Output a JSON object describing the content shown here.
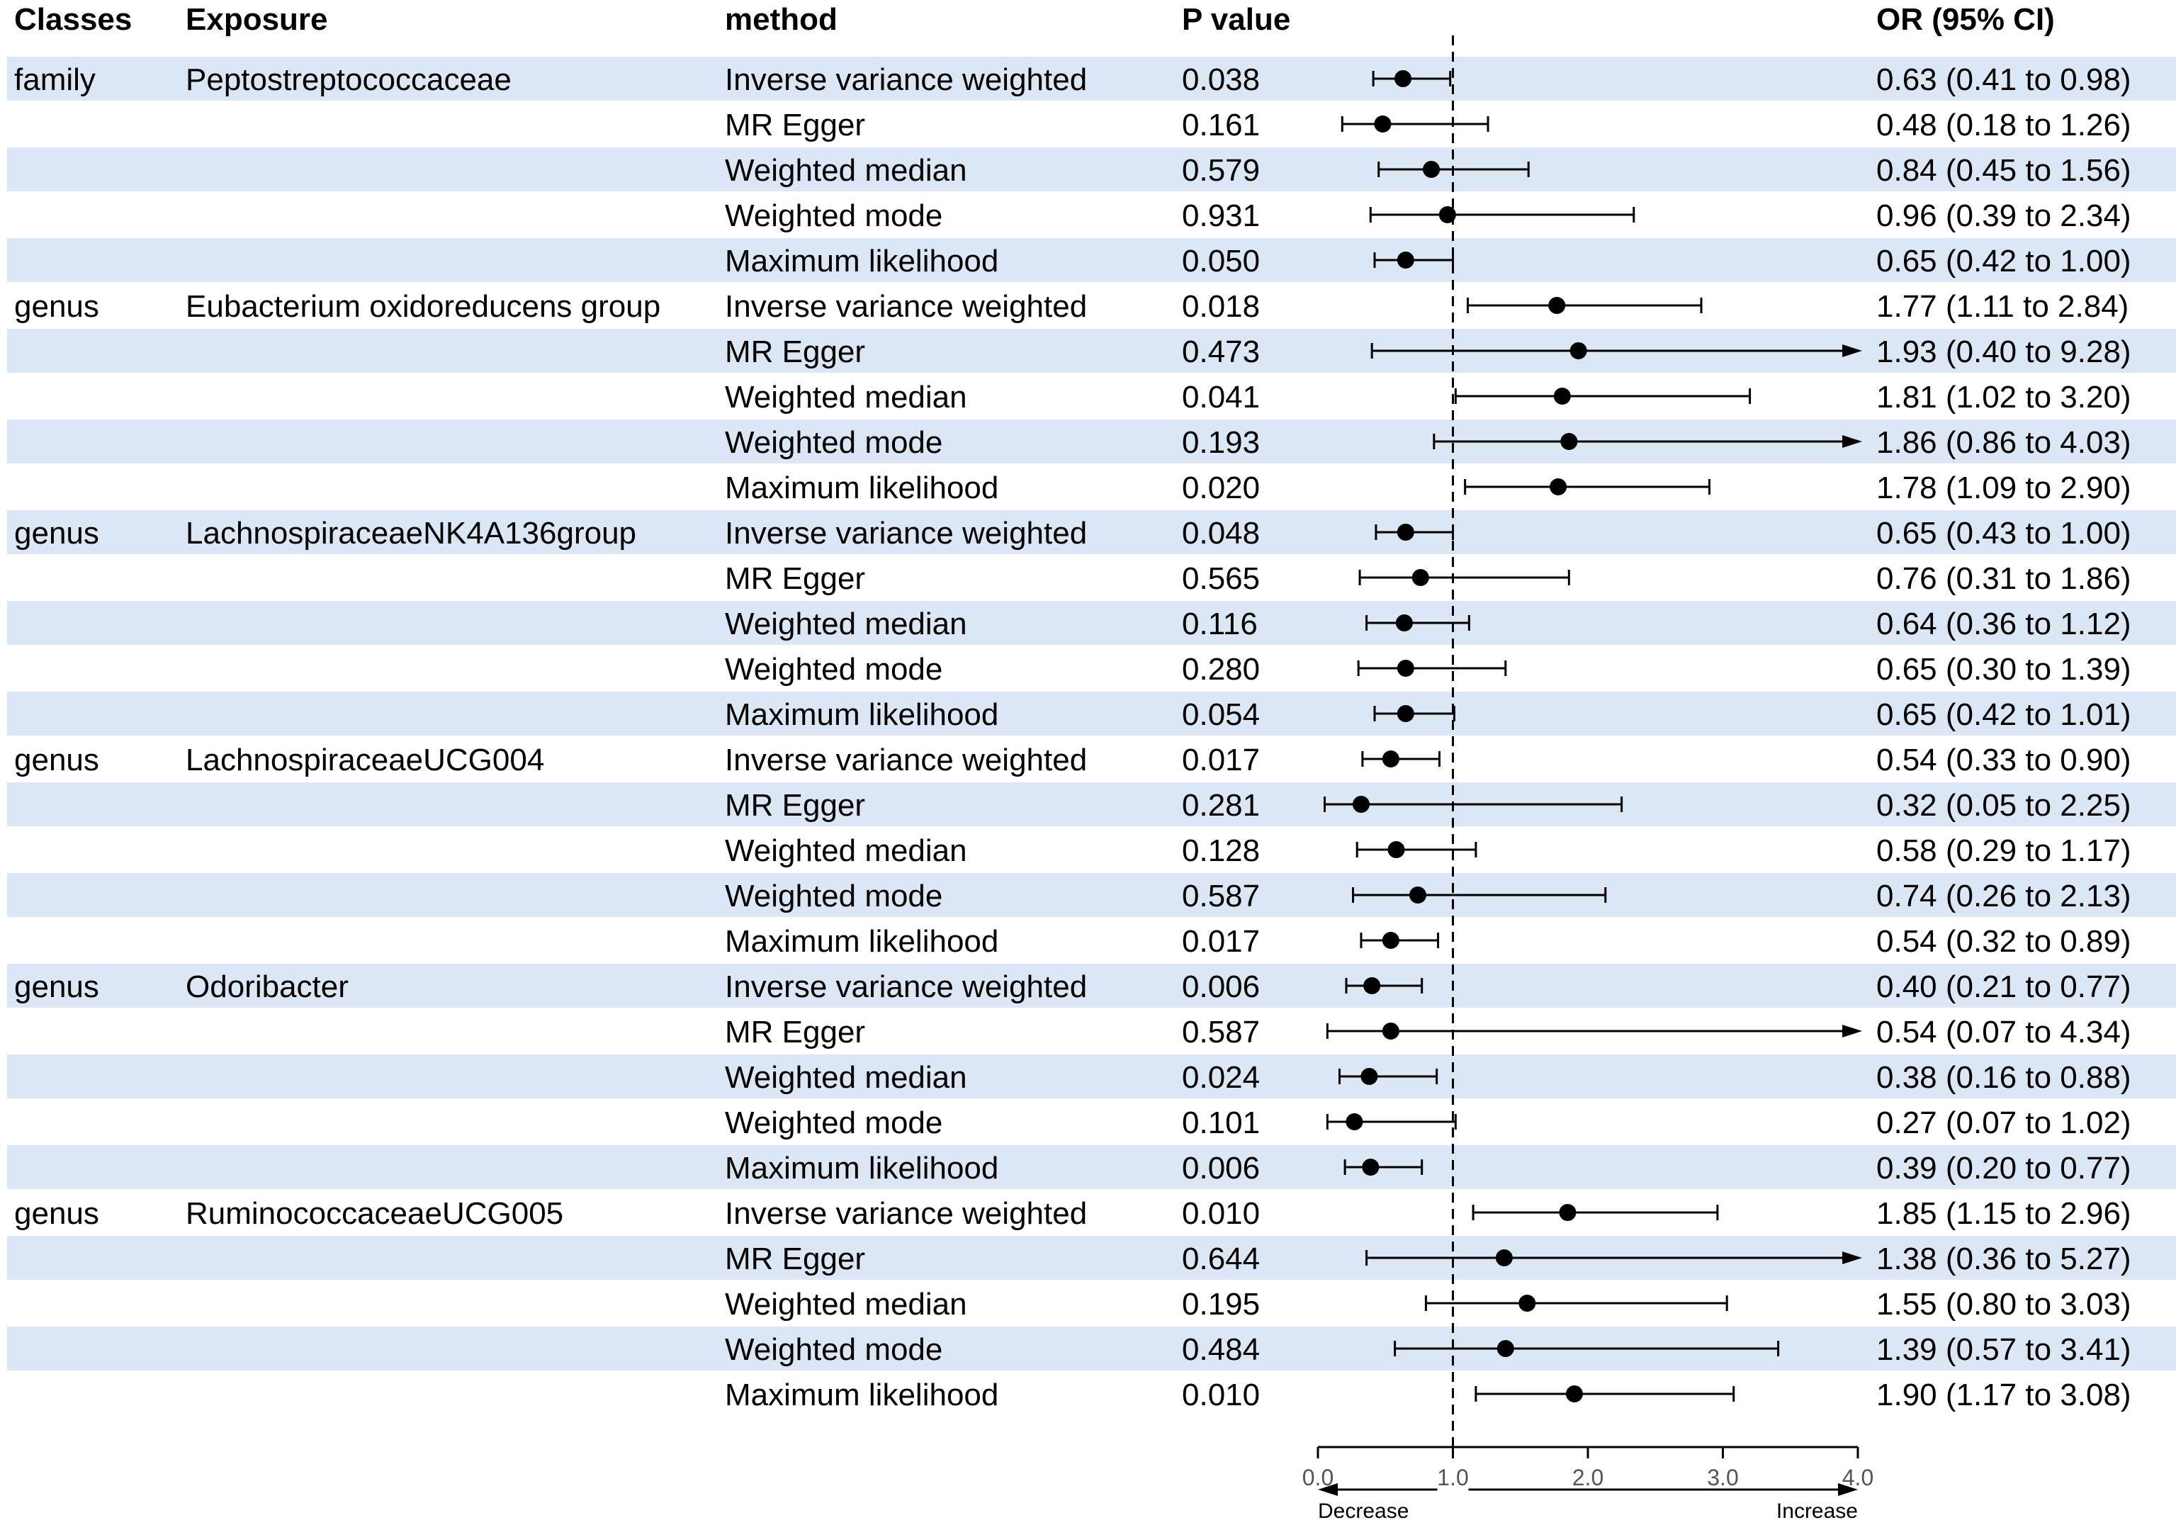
{
  "chart_data": {
    "type": "forest",
    "columns": {
      "classes": "Classes",
      "exposure": "Exposure",
      "method": "method",
      "pvalue": "P value",
      "or": "OR (95% CI)"
    },
    "xaxis": {
      "range": [
        0,
        4
      ],
      "reference": 1,
      "ticks": [
        {
          "value": 0,
          "label": "0.0"
        },
        {
          "value": 1,
          "label": "1.0"
        },
        {
          "value": 2,
          "label": "2.0"
        },
        {
          "value": 3,
          "label": "3.0"
        },
        {
          "value": 4,
          "label": "4.0"
        }
      ],
      "left_label": "Decrease",
      "right_label": "Increase"
    },
    "rows": [
      {
        "classes": "family",
        "exposure": "Peptostreptococcaceae",
        "method": "Inverse variance weighted",
        "p": "0.038",
        "or_text": "0.63 (0.41 to 0.98)",
        "or": 0.63,
        "lo": 0.41,
        "hi": 0.98
      },
      {
        "classes": "",
        "exposure": "",
        "method": "MR Egger",
        "p": "0.161",
        "or_text": "0.48 (0.18 to 1.26)",
        "or": 0.48,
        "lo": 0.18,
        "hi": 1.26
      },
      {
        "classes": "",
        "exposure": "",
        "method": "Weighted median",
        "p": "0.579",
        "or_text": "0.84 (0.45 to 1.56)",
        "or": 0.84,
        "lo": 0.45,
        "hi": 1.56
      },
      {
        "classes": "",
        "exposure": "",
        "method": "Weighted mode",
        "p": "0.931",
        "or_text": "0.96 (0.39 to 2.34)",
        "or": 0.96,
        "lo": 0.39,
        "hi": 2.34
      },
      {
        "classes": "",
        "exposure": "",
        "method": "Maximum likelihood",
        "p": "0.050",
        "or_text": "0.65 (0.42 to 1.00)",
        "or": 0.65,
        "lo": 0.42,
        "hi": 1.0
      },
      {
        "classes": "genus",
        "exposure": "Eubacterium oxidoreducens group",
        "method": "Inverse variance weighted",
        "p": "0.018",
        "or_text": "1.77 (1.11 to 2.84)",
        "or": 1.77,
        "lo": 1.11,
        "hi": 2.84
      },
      {
        "classes": "",
        "exposure": "",
        "method": "MR Egger",
        "p": "0.473",
        "or_text": "1.93 (0.40 to 9.28)",
        "or": 1.93,
        "lo": 0.4,
        "hi": 9.28
      },
      {
        "classes": "",
        "exposure": "",
        "method": "Weighted median",
        "p": "0.041",
        "or_text": "1.81 (1.02 to 3.20)",
        "or": 1.81,
        "lo": 1.02,
        "hi": 3.2
      },
      {
        "classes": "",
        "exposure": "",
        "method": "Weighted mode",
        "p": "0.193",
        "or_text": "1.86 (0.86 to 4.03)",
        "or": 1.86,
        "lo": 0.86,
        "hi": 4.03
      },
      {
        "classes": "",
        "exposure": "",
        "method": "Maximum likelihood",
        "p": "0.020",
        "or_text": "1.78 (1.09 to 2.90)",
        "or": 1.78,
        "lo": 1.09,
        "hi": 2.9
      },
      {
        "classes": "genus",
        "exposure": "LachnospiraceaeNK4A136group",
        "method": "Inverse variance weighted",
        "p": "0.048",
        "or_text": "0.65 (0.43 to 1.00)",
        "or": 0.65,
        "lo": 0.43,
        "hi": 1.0
      },
      {
        "classes": "",
        "exposure": "",
        "method": "MR Egger",
        "p": "0.565",
        "or_text": "0.76 (0.31 to 1.86)",
        "or": 0.76,
        "lo": 0.31,
        "hi": 1.86
      },
      {
        "classes": "",
        "exposure": "",
        "method": "Weighted median",
        "p": "0.116",
        "or_text": "0.64 (0.36 to 1.12)",
        "or": 0.64,
        "lo": 0.36,
        "hi": 1.12
      },
      {
        "classes": "",
        "exposure": "",
        "method": "Weighted mode",
        "p": "0.280",
        "or_text": "0.65 (0.30 to 1.39)",
        "or": 0.65,
        "lo": 0.3,
        "hi": 1.39
      },
      {
        "classes": "",
        "exposure": "",
        "method": "Maximum likelihood",
        "p": "0.054",
        "or_text": "0.65 (0.42 to 1.01)",
        "or": 0.65,
        "lo": 0.42,
        "hi": 1.01
      },
      {
        "classes": "genus",
        "exposure": "LachnospiraceaeUCG004",
        "method": "Inverse variance weighted",
        "p": "0.017",
        "or_text": "0.54 (0.33 to 0.90)",
        "or": 0.54,
        "lo": 0.33,
        "hi": 0.9
      },
      {
        "classes": "",
        "exposure": "",
        "method": "MR Egger",
        "p": "0.281",
        "or_text": "0.32 (0.05 to 2.25)",
        "or": 0.32,
        "lo": 0.05,
        "hi": 2.25
      },
      {
        "classes": "",
        "exposure": "",
        "method": "Weighted median",
        "p": "0.128",
        "or_text": "0.58 (0.29 to 1.17)",
        "or": 0.58,
        "lo": 0.29,
        "hi": 1.17
      },
      {
        "classes": "",
        "exposure": "",
        "method": "Weighted mode",
        "p": "0.587",
        "or_text": "0.74 (0.26 to 2.13)",
        "or": 0.74,
        "lo": 0.26,
        "hi": 2.13
      },
      {
        "classes": "",
        "exposure": "",
        "method": "Maximum likelihood",
        "p": "0.017",
        "or_text": "0.54 (0.32 to 0.89)",
        "or": 0.54,
        "lo": 0.32,
        "hi": 0.89
      },
      {
        "classes": "genus",
        "exposure": "Odoribacter",
        "method": "Inverse variance weighted",
        "p": "0.006",
        "or_text": "0.40 (0.21 to 0.77)",
        "or": 0.4,
        "lo": 0.21,
        "hi": 0.77
      },
      {
        "classes": "",
        "exposure": "",
        "method": "MR Egger",
        "p": "0.587",
        "or_text": "0.54 (0.07 to 4.34)",
        "or": 0.54,
        "lo": 0.07,
        "hi": 4.34
      },
      {
        "classes": "",
        "exposure": "",
        "method": "Weighted median",
        "p": "0.024",
        "or_text": "0.38 (0.16 to 0.88)",
        "or": 0.38,
        "lo": 0.16,
        "hi": 0.88
      },
      {
        "classes": "",
        "exposure": "",
        "method": "Weighted mode",
        "p": "0.101",
        "or_text": "0.27 (0.07 to 1.02)",
        "or": 0.27,
        "lo": 0.07,
        "hi": 1.02
      },
      {
        "classes": "",
        "exposure": "",
        "method": "Maximum likelihood",
        "p": "0.006",
        "or_text": "0.39 (0.20 to 0.77)",
        "or": 0.39,
        "lo": 0.2,
        "hi": 0.77
      },
      {
        "classes": "genus",
        "exposure": "RuminococcaceaeUCG005",
        "method": "Inverse variance weighted",
        "p": "0.010",
        "or_text": "1.85 (1.15 to 2.96)",
        "or": 1.85,
        "lo": 1.15,
        "hi": 2.96
      },
      {
        "classes": "",
        "exposure": "",
        "method": "MR Egger",
        "p": "0.644",
        "or_text": "1.38 (0.36 to 5.27)",
        "or": 1.38,
        "lo": 0.36,
        "hi": 5.27
      },
      {
        "classes": "",
        "exposure": "",
        "method": "Weighted median",
        "p": "0.195",
        "or_text": "1.55 (0.80 to 3.03)",
        "or": 1.55,
        "lo": 0.8,
        "hi": 3.03
      },
      {
        "classes": "",
        "exposure": "",
        "method": "Weighted mode",
        "p": "0.484",
        "or_text": "1.39 (0.57 to 3.41)",
        "or": 1.39,
        "lo": 0.57,
        "hi": 3.41
      },
      {
        "classes": "",
        "exposure": "",
        "method": "Maximum likelihood",
        "p": "0.010",
        "or_text": "1.90 (1.17 to 3.08)",
        "or": 1.9,
        "lo": 1.17,
        "hi": 3.08
      }
    ]
  }
}
